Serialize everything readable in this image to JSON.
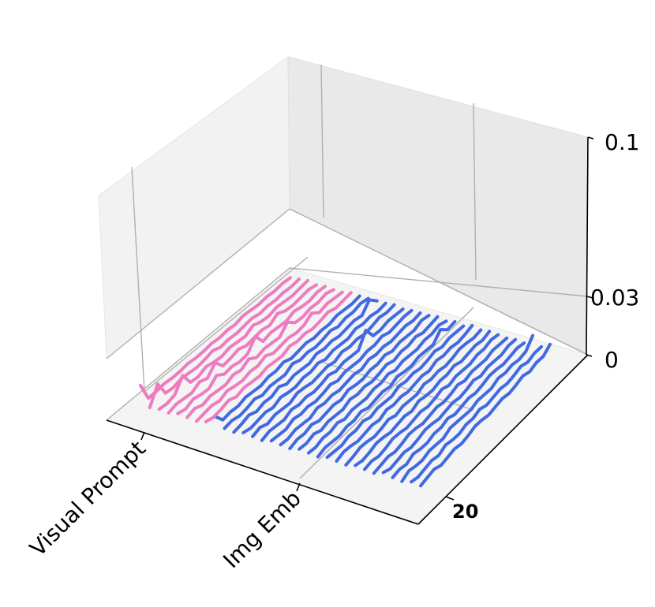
{
  "chart_data": {
    "type": "line",
    "projection": "3d",
    "title": "",
    "xlabel": "",
    "ylabel": "",
    "zlabel": "",
    "grid": true,
    "x_ticks": [
      "Visual Prompt",
      "Img Emb"
    ],
    "y_ticks": [
      "20"
    ],
    "z_ticks": [
      "0",
      "0.03",
      "0.1"
    ],
    "zlim": [
      0,
      0.1
    ],
    "colors": {
      "Visual Prompt": "#ee7bbf",
      "Img Emb": "#4169e1"
    },
    "series": [
      {
        "group": "Visual Prompt",
        "values": [
          0.02,
          0.003,
          0.003,
          0.004,
          0.003,
          0.003,
          0.004,
          0.003,
          0.003,
          0.004,
          0.003,
          0.004,
          0.003,
          0.005,
          0.004,
          0.003,
          0.004,
          0.003,
          0.004,
          0.003
        ]
      },
      {
        "group": "Visual Prompt",
        "values": [
          0.003,
          0.018,
          0.004,
          0.003,
          0.005,
          0.004,
          0.003,
          0.004,
          0.006,
          0.003,
          0.004,
          0.003,
          0.004,
          0.005,
          0.003,
          0.004,
          0.003,
          0.004,
          0.003,
          0.004
        ]
      },
      {
        "group": "Visual Prompt",
        "values": [
          0.004,
          0.003,
          0.005,
          0.016,
          0.004,
          0.003,
          0.006,
          0.004,
          0.003,
          0.005,
          0.004,
          0.003,
          0.007,
          0.004,
          0.003,
          0.005,
          0.004,
          0.003,
          0.004,
          0.005
        ]
      },
      {
        "group": "Visual Prompt",
        "values": [
          0.003,
          0.005,
          0.004,
          0.003,
          0.007,
          0.004,
          0.012,
          0.003,
          0.004,
          0.006,
          0.003,
          0.004,
          0.005,
          0.003,
          0.008,
          0.004,
          0.003,
          0.004,
          0.005,
          0.003
        ]
      },
      {
        "group": "Visual Prompt",
        "values": [
          0.005,
          0.003,
          0.006,
          0.004,
          0.003,
          0.009,
          0.004,
          0.005,
          0.003,
          0.004,
          0.014,
          0.003,
          0.005,
          0.004,
          0.003,
          0.006,
          0.004,
          0.003,
          0.005,
          0.004
        ]
      },
      {
        "group": "Visual Prompt",
        "values": [
          0.004,
          0.006,
          0.003,
          0.005,
          0.004,
          0.003,
          0.006,
          0.004,
          0.008,
          0.003,
          0.005,
          0.004,
          0.003,
          0.011,
          0.004,
          0.003,
          0.005,
          0.004,
          0.006,
          0.003
        ]
      },
      {
        "group": "Visual Prompt",
        "values": [
          0.003,
          0.004,
          0.005,
          0.003,
          0.006,
          0.004,
          0.003,
          0.005,
          0.004,
          0.007,
          0.003,
          0.004,
          0.005,
          0.003,
          0.004,
          0.009,
          0.003,
          0.005,
          0.004,
          0.003
        ]
      },
      {
        "group": "Visual Prompt",
        "values": [
          0.005,
          0.003,
          0.004,
          0.006,
          0.003,
          0.005,
          0.004,
          0.003,
          0.005,
          0.004,
          0.003,
          0.006,
          0.004,
          0.005,
          0.003,
          0.004,
          0.006,
          0.003,
          0.004,
          0.005
        ]
      },
      {
        "group": "Img Emb",
        "values": [
          0.012,
          0.003,
          0.004,
          0.003,
          0.005,
          0.004,
          0.003,
          0.005,
          0.004,
          0.006,
          0.003,
          0.004,
          0.005,
          0.003,
          0.004,
          0.003,
          0.005,
          0.004,
          0.003,
          0.004
        ]
      },
      {
        "group": "Img Emb",
        "values": [
          0.004,
          0.005,
          0.003,
          0.004,
          0.006,
          0.003,
          0.005,
          0.004,
          0.003,
          0.007,
          0.004,
          0.005,
          0.003,
          0.004,
          0.006,
          0.003,
          0.005,
          0.004,
          0.006,
          0.004
        ]
      },
      {
        "group": "Img Emb",
        "values": [
          0.003,
          0.004,
          0.006,
          0.003,
          0.005,
          0.004,
          0.007,
          0.003,
          0.005,
          0.004,
          0.003,
          0.006,
          0.004,
          0.005,
          0.003,
          0.004,
          0.005,
          0.003,
          0.012,
          0.004
        ]
      },
      {
        "group": "Img Emb",
        "values": [
          0.005,
          0.003,
          0.004,
          0.005,
          0.003,
          0.006,
          0.004,
          0.003,
          0.005,
          0.004,
          0.006,
          0.003,
          0.005,
          0.004,
          0.003,
          0.006,
          0.004,
          0.005,
          0.003,
          0.004
        ]
      },
      {
        "group": "Img Emb",
        "values": [
          0.004,
          0.006,
          0.003,
          0.005,
          0.004,
          0.003,
          0.006,
          0.005,
          0.003,
          0.004,
          0.005,
          0.003,
          0.006,
          0.004,
          0.005,
          0.003,
          0.004,
          0.006,
          0.004,
          0.005
        ]
      },
      {
        "group": "Img Emb",
        "values": [
          0.003,
          0.005,
          0.004,
          0.003,
          0.006,
          0.004,
          0.005,
          0.003,
          0.004,
          0.006,
          0.003,
          0.005,
          0.004,
          0.003,
          0.016,
          0.004,
          0.003,
          0.005,
          0.004,
          0.003
        ]
      },
      {
        "group": "Img Emb",
        "values": [
          0.005,
          0.004,
          0.003,
          0.006,
          0.004,
          0.005,
          0.003,
          0.004,
          0.006,
          0.003,
          0.005,
          0.004,
          0.003,
          0.005,
          0.004,
          0.006,
          0.003,
          0.004,
          0.005,
          0.004
        ]
      },
      {
        "group": "Img Emb",
        "values": [
          0.004,
          0.003,
          0.005,
          0.004,
          0.003,
          0.006,
          0.004,
          0.005,
          0.003,
          0.004,
          0.005,
          0.003,
          0.006,
          0.004,
          0.005,
          0.003,
          0.004,
          0.005,
          0.003,
          0.004
        ]
      },
      {
        "group": "Img Emb",
        "values": [
          0.003,
          0.005,
          0.004,
          0.006,
          0.003,
          0.004,
          0.005,
          0.003,
          0.006,
          0.004,
          0.003,
          0.005,
          0.004,
          0.006,
          0.003,
          0.005,
          0.004,
          0.003,
          0.006,
          0.004
        ]
      },
      {
        "group": "Img Emb",
        "values": [
          0.005,
          0.004,
          0.006,
          0.003,
          0.005,
          0.004,
          0.003,
          0.006,
          0.004,
          0.005,
          0.003,
          0.004,
          0.006,
          0.003,
          0.005,
          0.004,
          0.006,
          0.003,
          0.004,
          0.005
        ]
      },
      {
        "group": "Img Emb",
        "values": [
          0.004,
          0.003,
          0.005,
          0.004,
          0.006,
          0.003,
          0.005,
          0.004,
          0.003,
          0.005,
          0.004,
          0.006,
          0.003,
          0.005,
          0.004,
          0.003,
          0.005,
          0.004,
          0.006,
          0.003
        ]
      },
      {
        "group": "Img Emb",
        "values": [
          0.003,
          0.005,
          0.004,
          0.003,
          0.005,
          0.004,
          0.006,
          0.003,
          0.004,
          0.005,
          0.003,
          0.006,
          0.004,
          0.003,
          0.005,
          0.004,
          0.003,
          0.011,
          0.004,
          0.005
        ]
      },
      {
        "group": "Img Emb",
        "values": [
          0.005,
          0.004,
          0.003,
          0.005,
          0.004,
          0.006,
          0.003,
          0.005,
          0.004,
          0.003,
          0.006,
          0.004,
          0.005,
          0.003,
          0.004,
          0.006,
          0.003,
          0.005,
          0.004,
          0.003
        ]
      },
      {
        "group": "Img Emb",
        "values": [
          0.004,
          0.006,
          0.005,
          0.003,
          0.004,
          0.005,
          0.003,
          0.006,
          0.004,
          0.005,
          0.003,
          0.004,
          0.005,
          0.003,
          0.006,
          0.004,
          0.005,
          0.003,
          0.004,
          0.006
        ]
      },
      {
        "group": "Img Emb",
        "values": [
          0.003,
          0.004,
          0.006,
          0.005,
          0.003,
          0.004,
          0.006,
          0.003,
          0.005,
          0.004,
          0.003,
          0.006,
          0.004,
          0.005,
          0.003,
          0.004,
          0.006,
          0.005,
          0.003,
          0.004
        ]
      },
      {
        "group": "Img Emb",
        "values": [
          0.005,
          0.003,
          0.004,
          0.006,
          0.005,
          0.003,
          0.004,
          0.005,
          0.003,
          0.006,
          0.004,
          0.003,
          0.005,
          0.004,
          0.006,
          0.003,
          0.004,
          0.005,
          0.003,
          0.005
        ]
      },
      {
        "group": "Img Emb",
        "values": [
          0.004,
          0.005,
          0.003,
          0.004,
          0.006,
          0.005,
          0.003,
          0.004,
          0.005,
          0.003,
          0.004,
          0.006,
          0.003,
          0.005,
          0.004,
          0.003,
          0.005,
          0.004,
          0.006,
          0.004
        ]
      },
      {
        "group": "Img Emb",
        "values": [
          0.003,
          0.004,
          0.005,
          0.003,
          0.004,
          0.006,
          0.005,
          0.003,
          0.004,
          0.005,
          0.003,
          0.004,
          0.006,
          0.003,
          0.005,
          0.004,
          0.003,
          0.005,
          0.004,
          0.003
        ]
      },
      {
        "group": "Img Emb",
        "values": [
          0.006,
          0.003,
          0.004,
          0.005,
          0.003,
          0.004,
          0.006,
          0.005,
          0.003,
          0.004,
          0.005,
          0.003,
          0.004,
          0.006,
          0.003,
          0.005,
          0.004,
          0.003,
          0.005,
          0.004
        ]
      },
      {
        "group": "Img Emb",
        "values": [
          0.004,
          0.005,
          0.003,
          0.006,
          0.004,
          0.003,
          0.005,
          0.004,
          0.006,
          0.003,
          0.004,
          0.005,
          0.003,
          0.004,
          0.006,
          0.005,
          0.003,
          0.004,
          0.005,
          0.003
        ]
      },
      {
        "group": "Img Emb",
        "values": [
          0.003,
          0.006,
          0.004,
          0.003,
          0.005,
          0.004,
          0.003,
          0.006,
          0.005,
          0.004,
          0.003,
          0.005,
          0.004,
          0.003,
          0.006,
          0.004,
          0.005,
          0.003,
          0.004,
          0.013
        ]
      },
      {
        "group": "Img Emb",
        "values": [
          0.005,
          0.003,
          0.004,
          0.005,
          0.003,
          0.006,
          0.004,
          0.003,
          0.005,
          0.004,
          0.006,
          0.003,
          0.004,
          0.005,
          0.003,
          0.004,
          0.006,
          0.003,
          0.005,
          0.004
        ]
      },
      {
        "group": "Img Emb",
        "values": [
          0.004,
          0.005,
          0.006,
          0.003,
          0.004,
          0.005,
          0.003,
          0.004,
          0.006,
          0.005,
          0.003,
          0.004,
          0.005,
          0.003,
          0.004,
          0.006,
          0.003,
          0.005,
          0.004,
          0.009
        ]
      }
    ]
  }
}
